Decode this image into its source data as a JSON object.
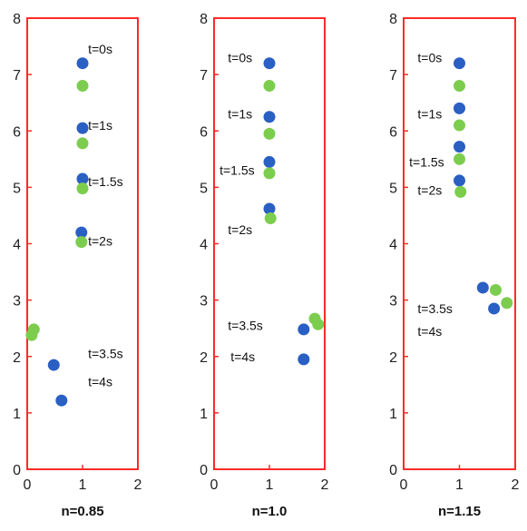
{
  "colors": {
    "axis": "#ff2a2a",
    "blue": "#2a5fc4",
    "green": "#7ccd4e"
  },
  "chart_data": [
    {
      "type": "scatter",
      "caption": "n=0.85",
      "xlim": [
        0,
        2
      ],
      "ylim": [
        0,
        8
      ],
      "x_ticks": [
        "0",
        "1",
        "2"
      ],
      "y_ticks": [
        "0",
        "1",
        "2",
        "3",
        "4",
        "5",
        "6",
        "7",
        "8"
      ],
      "series": [
        {
          "color": "blue",
          "points": [
            [
              1.0,
              7.2
            ],
            [
              1.0,
              6.05
            ],
            [
              1.0,
              5.15
            ],
            [
              0.98,
              4.2
            ],
            [
              0.48,
              1.85
            ],
            [
              0.62,
              1.22
            ]
          ]
        },
        {
          "color": "green",
          "points": [
            [
              1.0,
              6.8
            ],
            [
              1.0,
              5.78
            ],
            [
              1.0,
              4.98
            ],
            [
              0.98,
              4.03
            ],
            [
              0.12,
              2.48
            ],
            [
              0.08,
              2.38
            ]
          ]
        }
      ],
      "annotations": [
        {
          "text": "t=0s",
          "x": 1.1,
          "y": 7.45
        },
        {
          "text": "t=1s",
          "x": 1.1,
          "y": 6.1
        },
        {
          "text": "t=1.5s",
          "x": 1.1,
          "y": 5.1
        },
        {
          "text": "t=2s",
          "x": 1.1,
          "y": 4.05
        },
        {
          "text": "t=3.5s",
          "x": 1.1,
          "y": 2.05
        },
        {
          "text": "t=4s",
          "x": 1.1,
          "y": 1.55
        }
      ]
    },
    {
      "type": "scatter",
      "caption": "n=1.0",
      "xlim": [
        0,
        2
      ],
      "ylim": [
        0,
        8
      ],
      "x_ticks": [
        "0",
        "1",
        "2"
      ],
      "y_ticks": [
        "0",
        "1",
        "2",
        "3",
        "4",
        "5",
        "6",
        "7",
        "8"
      ],
      "series": [
        {
          "color": "blue",
          "points": [
            [
              1.0,
              7.2
            ],
            [
              1.0,
              6.25
            ],
            [
              1.0,
              5.45
            ],
            [
              1.0,
              4.62
            ],
            [
              1.62,
              2.48
            ],
            [
              1.62,
              1.95
            ]
          ]
        },
        {
          "color": "green",
          "points": [
            [
              1.0,
              6.8
            ],
            [
              1.0,
              5.95
            ],
            [
              1.0,
              5.25
            ],
            [
              1.02,
              4.45
            ],
            [
              1.82,
              2.67
            ],
            [
              1.88,
              2.57
            ]
          ]
        }
      ],
      "annotations": [
        {
          "text": "t=0s",
          "x": 0.25,
          "y": 7.3
        },
        {
          "text": "t=1s",
          "x": 0.25,
          "y": 6.3
        },
        {
          "text": "t=1.5s",
          "x": 0.1,
          "y": 5.3
        },
        {
          "text": "t=2s",
          "x": 0.25,
          "y": 4.25
        },
        {
          "text": "t=3.5s",
          "x": 0.25,
          "y": 2.55
        },
        {
          "text": "t=4s",
          "x": 0.3,
          "y": 2.0
        }
      ]
    },
    {
      "type": "scatter",
      "caption": "n=1.15",
      "xlim": [
        0,
        2
      ],
      "ylim": [
        0,
        8
      ],
      "x_ticks": [
        "0",
        "1",
        "2"
      ],
      "y_ticks": [
        "0",
        "1",
        "2",
        "3",
        "4",
        "5",
        "6",
        "7",
        "8"
      ],
      "series": [
        {
          "color": "blue",
          "points": [
            [
              1.0,
              7.2
            ],
            [
              1.0,
              6.4
            ],
            [
              1.0,
              5.72
            ],
            [
              1.0,
              5.12
            ],
            [
              1.42,
              3.22
            ],
            [
              1.62,
              2.85
            ]
          ]
        },
        {
          "color": "green",
          "points": [
            [
              1.0,
              6.8
            ],
            [
              1.0,
              6.1
            ],
            [
              1.0,
              5.5
            ],
            [
              1.02,
              4.92
            ],
            [
              1.65,
              3.18
            ],
            [
              1.85,
              2.95
            ]
          ]
        }
      ],
      "annotations": [
        {
          "text": "t=0s",
          "x": 0.25,
          "y": 7.3
        },
        {
          "text": "t=1s",
          "x": 0.25,
          "y": 6.3
        },
        {
          "text": "t=1.5s",
          "x": 0.1,
          "y": 5.45
        },
        {
          "text": "t=2s",
          "x": 0.25,
          "y": 4.95
        },
        {
          "text": "t=3.5s",
          "x": 0.25,
          "y": 2.85
        },
        {
          "text": "t=4s",
          "x": 0.25,
          "y": 2.45
        }
      ]
    }
  ]
}
